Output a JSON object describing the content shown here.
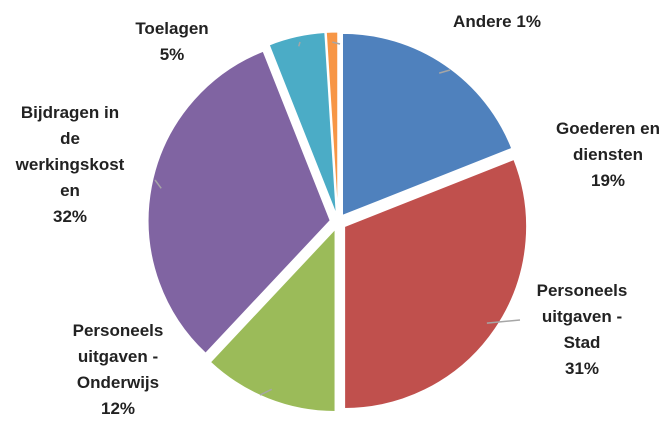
{
  "chart_data": {
    "type": "pie",
    "categories": [
      "Goederen en diensten",
      "Personeels uitgaven - Stad",
      "Personeels uitgaven - Onderwijs",
      "Bijdragen in de werkingskosten",
      "Toelagen",
      "Andere"
    ],
    "values": [
      19,
      31,
      12,
      32,
      5,
      1
    ],
    "value_labels": [
      "19%",
      "31%",
      "12%",
      "32%",
      "5%",
      "1%"
    ],
    "colors": [
      "#4f81bd",
      "#c0504d",
      "#9bbb59",
      "#8064a2",
      "#4bacc6",
      "#f79646"
    ]
  }
}
